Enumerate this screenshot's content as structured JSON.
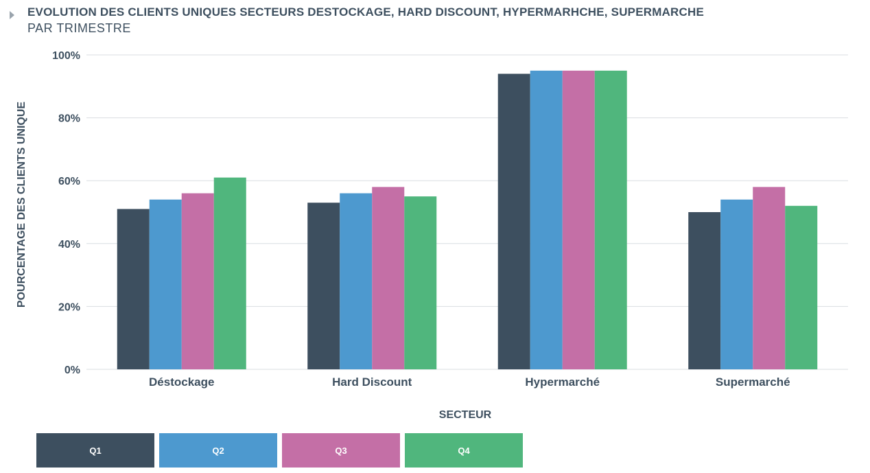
{
  "header": {
    "title": "EVOLUTION DES CLIENTS UNIQUES SECTEURS DESTOCKAGE, HARD DISCOUNT, HYPERMARHCHE, SUPERMARCHE",
    "subtitle": "PAR TRIMESTRE"
  },
  "chart_data": {
    "type": "bar",
    "title": "EVOLUTION DES CLIENTS UNIQUES SECTEURS DESTOCKAGE, HARD DISCOUNT, HYPERMARHCHE, SUPERMARCHE",
    "subtitle": "PAR TRIMESTRE",
    "xlabel": "SECTEUR",
    "ylabel": "POURCENTAGE DES CLIENTS UNIQUE",
    "categories": [
      "Déstockage",
      "Hard Discount",
      "Hypermarché",
      "Supermarché"
    ],
    "ylim": [
      0,
      100
    ],
    "yticks": [
      0,
      20,
      40,
      60,
      80,
      100
    ],
    "ytick_labels": [
      "0%",
      "20%",
      "40%",
      "60%",
      "80%",
      "100%"
    ],
    "grid": true,
    "legend_position": "bottom-left",
    "series": [
      {
        "name": "Q1",
        "color": "#3d4f5f",
        "values": [
          51,
          53,
          94,
          50
        ]
      },
      {
        "name": "Q2",
        "color": "#4d99cf",
        "values": [
          54,
          56,
          95,
          54
        ]
      },
      {
        "name": "Q3",
        "color": "#c46fa6",
        "values": [
          56,
          58,
          95,
          58
        ]
      },
      {
        "name": "Q4",
        "color": "#50b67d",
        "values": [
          61,
          55,
          95,
          52
        ]
      }
    ]
  }
}
